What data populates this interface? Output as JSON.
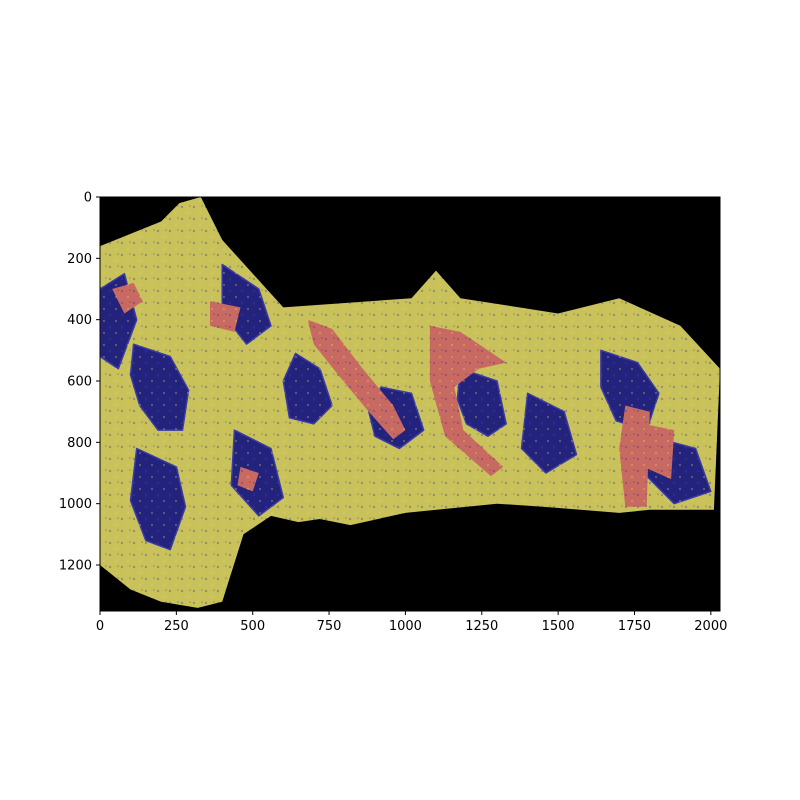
{
  "chart_data": {
    "type": "heatmap",
    "title": "",
    "xlabel": "",
    "ylabel": "",
    "xlim": [
      0,
      2030
    ],
    "ylim": [
      1350,
      0
    ],
    "y_inverted": true,
    "xticks": [
      0,
      250,
      500,
      750,
      1000,
      1250,
      1500,
      1750,
      2000
    ],
    "yticks": [
      0,
      200,
      400,
      600,
      800,
      1000,
      1200
    ],
    "xtick_labels": [
      "0",
      "250",
      "500",
      "750",
      "1000",
      "1250",
      "1500",
      "1750",
      "2000"
    ],
    "ytick_labels": [
      "0",
      "200",
      "400",
      "600",
      "800",
      "1000",
      "1200"
    ],
    "grid": false,
    "legend": "none",
    "description_of_image": "tissue-section overlay image",
    "colors": {
      "background": "#000000",
      "yellow": "#c9c25a",
      "blue": "#23237e",
      "red": "#c86a62"
    },
    "regions": {
      "tissue": [
        [
          0,
          160
        ],
        [
          200,
          80
        ],
        [
          260,
          20
        ],
        [
          330,
          0
        ],
        [
          400,
          140
        ],
        [
          600,
          360
        ],
        [
          1020,
          330
        ],
        [
          1100,
          240
        ],
        [
          1180,
          330
        ],
        [
          1500,
          380
        ],
        [
          1700,
          330
        ],
        [
          1900,
          420
        ],
        [
          2030,
          560
        ],
        [
          2010,
          1020
        ],
        [
          1800,
          1020
        ],
        [
          1700,
          1030
        ],
        [
          1450,
          1010
        ],
        [
          1300,
          1000
        ],
        [
          1000,
          1030
        ],
        [
          820,
          1070
        ],
        [
          720,
          1050
        ],
        [
          650,
          1060
        ],
        [
          560,
          1040
        ],
        [
          470,
          1100
        ],
        [
          400,
          1320
        ],
        [
          320,
          1340
        ],
        [
          200,
          1320
        ],
        [
          100,
          1280
        ],
        [
          0,
          1200
        ]
      ],
      "blue": [
        [
          [
            110,
            480
          ],
          [
            230,
            520
          ],
          [
            290,
            630
          ],
          [
            270,
            760
          ],
          [
            190,
            760
          ],
          [
            130,
            680
          ],
          [
            100,
            580
          ]
        ],
        [
          [
            640,
            510
          ],
          [
            720,
            560
          ],
          [
            760,
            680
          ],
          [
            700,
            740
          ],
          [
            620,
            720
          ],
          [
            600,
            600
          ]
        ],
        [
          [
            1180,
            560
          ],
          [
            1300,
            600
          ],
          [
            1330,
            740
          ],
          [
            1270,
            780
          ],
          [
            1200,
            740
          ],
          [
            1170,
            660
          ]
        ],
        [
          [
            1640,
            500
          ],
          [
            1760,
            540
          ],
          [
            1830,
            640
          ],
          [
            1790,
            760
          ],
          [
            1690,
            730
          ],
          [
            1640,
            620
          ]
        ],
        [
          [
            120,
            820
          ],
          [
            250,
            880
          ],
          [
            280,
            1010
          ],
          [
            230,
            1150
          ],
          [
            150,
            1120
          ],
          [
            100,
            990
          ]
        ],
        [
          [
            920,
            620
          ],
          [
            1020,
            640
          ],
          [
            1060,
            760
          ],
          [
            980,
            820
          ],
          [
            900,
            780
          ],
          [
            880,
            700
          ]
        ],
        [
          [
            1400,
            640
          ],
          [
            1520,
            700
          ],
          [
            1560,
            840
          ],
          [
            1460,
            900
          ],
          [
            1380,
            820
          ]
        ],
        [
          [
            1800,
            780
          ],
          [
            1950,
            820
          ],
          [
            2000,
            960
          ],
          [
            1880,
            1000
          ],
          [
            1780,
            900
          ]
        ],
        [
          [
            0,
            300
          ],
          [
            80,
            250
          ],
          [
            120,
            400
          ],
          [
            60,
            560
          ],
          [
            0,
            520
          ]
        ],
        [
          [
            400,
            220
          ],
          [
            520,
            300
          ],
          [
            560,
            420
          ],
          [
            480,
            480
          ],
          [
            400,
            380
          ]
        ],
        [
          [
            440,
            760
          ],
          [
            560,
            820
          ],
          [
            600,
            980
          ],
          [
            520,
            1040
          ],
          [
            430,
            940
          ]
        ]
      ],
      "red": [
        [
          [
            680,
            400
          ],
          [
            760,
            430
          ],
          [
            860,
            560
          ],
          [
            960,
            680
          ],
          [
            1000,
            760
          ],
          [
            960,
            790
          ],
          [
            880,
            700
          ],
          [
            780,
            580
          ],
          [
            700,
            480
          ]
        ],
        [
          [
            1080,
            420
          ],
          [
            1180,
            440
          ],
          [
            1330,
            540
          ],
          [
            1240,
            560
          ],
          [
            1160,
            620
          ],
          [
            1190,
            760
          ],
          [
            1320,
            880
          ],
          [
            1280,
            910
          ],
          [
            1130,
            780
          ],
          [
            1080,
            600
          ]
        ],
        [
          [
            1720,
            680
          ],
          [
            1800,
            700
          ],
          [
            1790,
            1010
          ],
          [
            1720,
            1010
          ],
          [
            1700,
            820
          ]
        ],
        [
          [
            40,
            300
          ],
          [
            110,
            280
          ],
          [
            140,
            340
          ],
          [
            80,
            380
          ]
        ],
        [
          [
            1780,
            740
          ],
          [
            1880,
            760
          ],
          [
            1870,
            920
          ],
          [
            1780,
            880
          ]
        ],
        [
          [
            360,
            340
          ],
          [
            460,
            360
          ],
          [
            440,
            440
          ],
          [
            360,
            420
          ]
        ],
        [
          [
            460,
            880
          ],
          [
            520,
            900
          ],
          [
            500,
            960
          ],
          [
            450,
            940
          ]
        ]
      ]
    }
  }
}
